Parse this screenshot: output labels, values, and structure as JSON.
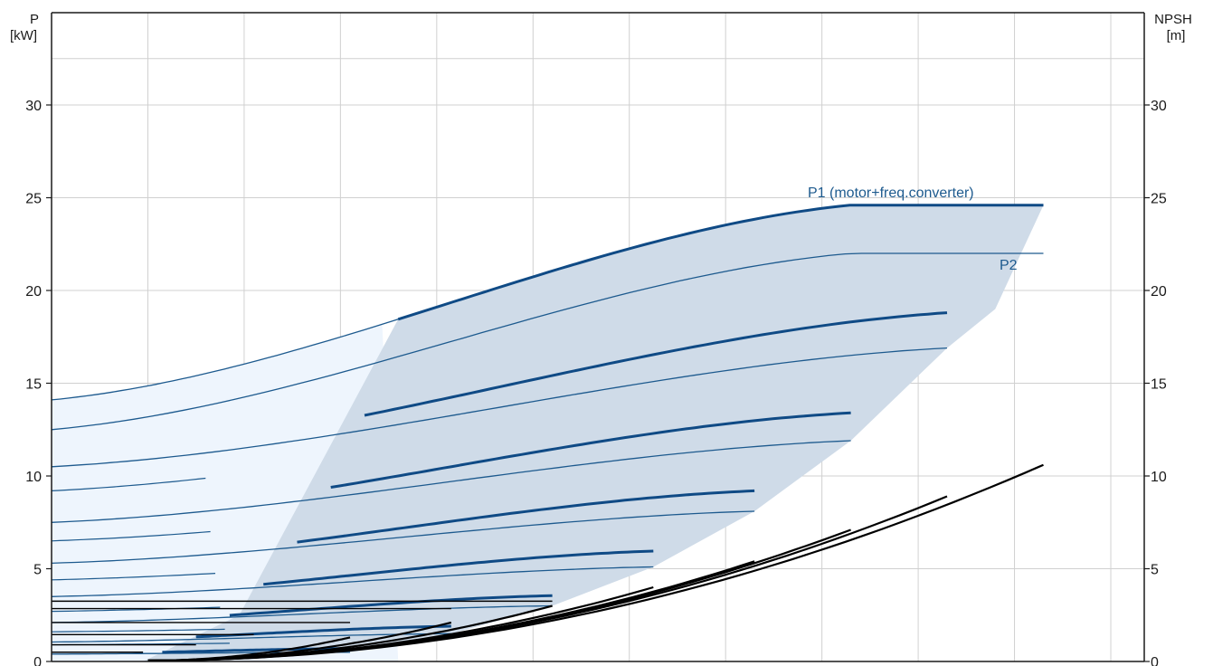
{
  "chart_data": {
    "type": "line",
    "left_axis": {
      "label_line1": "P",
      "label_line2": "[kW]",
      "ylim": [
        0,
        30
      ],
      "ticks": [
        "0",
        "5",
        "10",
        "15",
        "20",
        "25",
        "30"
      ]
    },
    "right_axis": {
      "label_line1": "NPSH",
      "label_line2": "[m]",
      "ylim": [
        0,
        30
      ],
      "ticks": [
        "0",
        "5",
        "10",
        "15",
        "20",
        "25",
        "30"
      ]
    },
    "xlim": [
      0,
      11
    ],
    "grid": true,
    "colors": {
      "p1": "#0f4a85",
      "p2": "#1d5a8e",
      "npsh": "#000000",
      "region_dark": "#cfdbe8",
      "region_light": "#eef5fd",
      "grid": "#d0d0d0",
      "axis": "#1a1a1a"
    },
    "labels": {
      "p1": "P1 (motor+freq.converter)",
      "p2": "P2"
    },
    "region_boundary": [
      [
        0.95,
        0
      ],
      [
        1.95,
        2.5
      ],
      [
        3.6,
        16.0
      ],
      [
        3.6,
        0
      ]
    ],
    "p1_curves": [
      {
        "x_start": 0,
        "x_end": 10.3,
        "flat_from": 8.3,
        "y0": 14.1,
        "y_end": 24.6,
        "dark_from": 3.6
      },
      {
        "x_start": 3.25,
        "x_end": 9.3,
        "y0": 10.8,
        "y_end": 18.8
      },
      {
        "x_start": 2.9,
        "x_end": 8.3,
        "y0": 7.6,
        "y_end": 13.4
      },
      {
        "x_start": 2.55,
        "x_end": 7.3,
        "y0": 5.2,
        "y_end": 9.2
      },
      {
        "x_start": 2.2,
        "x_end": 6.25,
        "y0": 3.35,
        "y_end": 5.95
      },
      {
        "x_start": 1.85,
        "x_end": 5.2,
        "y0": 2.0,
        "y_end": 3.55
      },
      {
        "x_start": 1.5,
        "x_end": 4.15,
        "y0": 1.05,
        "y_end": 1.9
      },
      {
        "x_start": 1.15,
        "x_end": 3.1,
        "y0": 0.4,
        "y_end": 0.7
      },
      {
        "x_start": 0,
        "x_end": 0,
        "y0": 9.2,
        "y_end": 9.2
      },
      {
        "x_start": 0,
        "x_end": 0,
        "y0": 6.5,
        "y_end": 6.5
      },
      {
        "x_start": 0,
        "x_end": 0,
        "y0": 4.4,
        "y_end": 4.4
      },
      {
        "x_start": 0,
        "x_end": 0,
        "y0": 2.7,
        "y_end": 2.7
      },
      {
        "x_start": 0,
        "x_end": 0,
        "y0": 1.6,
        "y_end": 1.6
      },
      {
        "x_start": 0,
        "x_end": 0,
        "y0": 0.9,
        "y_end": 0.9
      }
    ],
    "p2_curves": [
      {
        "x_start": 0,
        "x_end": 10.3,
        "flat_from": 8.3,
        "y0": 12.5,
        "y_end": 22.0
      },
      {
        "x_start": 0,
        "x_end": 9.3,
        "y0": 10.5,
        "y_end": 16.9
      },
      {
        "x_start": 0,
        "x_end": 8.3,
        "y0": 7.5,
        "y_end": 11.9
      },
      {
        "x_start": 0,
        "x_end": 7.3,
        "y0": 5.3,
        "y_end": 8.1
      },
      {
        "x_start": 0,
        "x_end": 6.25,
        "y0": 3.5,
        "y_end": 5.1
      },
      {
        "x_start": 0,
        "x_end": 5.2,
        "y0": 2.1,
        "y_end": 3.0
      },
      {
        "x_start": 0,
        "x_end": 4.15,
        "y0": 1.05,
        "y_end": 1.5
      },
      {
        "x_start": 0,
        "x_end": 3.1,
        "y0": 0.4,
        "y_end": 0.5
      }
    ],
    "npsh_curves": [
      {
        "x_end": 10.3,
        "y_end": 10.6
      },
      {
        "x_end": 9.3,
        "y_end": 8.9
      },
      {
        "x_end": 8.3,
        "y_end": 7.1
      },
      {
        "x_end": 7.3,
        "y_end": 5.4
      },
      {
        "x_end": 6.25,
        "y_end": 4.0
      },
      {
        "x_end": 5.2,
        "y_end": 3.0
      },
      {
        "x_end": 4.15,
        "y_end": 2.1
      },
      {
        "x_end": 3.1,
        "y_end": 1.3
      }
    ],
    "npsh_flat_lines": [
      {
        "y": 3.25,
        "x_end": 5.2
      },
      {
        "y": 2.85,
        "x_end": 4.15
      },
      {
        "y": 2.1,
        "x_end": 3.1
      },
      {
        "y": 1.45,
        "x_end": 2.1
      },
      {
        "y": 0.9,
        "x_end": 1.5
      },
      {
        "y": 0.5,
        "x_end": 0.95
      }
    ]
  }
}
